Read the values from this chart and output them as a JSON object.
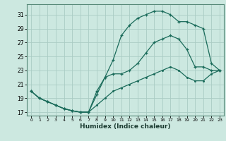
{
  "xlabel": "Humidex (Indice chaleur)",
  "xlim": [
    -0.5,
    23.5
  ],
  "ylim": [
    16.5,
    32.5
  ],
  "yticks": [
    17,
    19,
    21,
    23,
    25,
    27,
    29,
    31
  ],
  "xticks": [
    0,
    1,
    2,
    3,
    4,
    5,
    6,
    7,
    8,
    9,
    10,
    11,
    12,
    13,
    14,
    15,
    16,
    17,
    18,
    19,
    20,
    21,
    22,
    23
  ],
  "bg_color": "#cce8e0",
  "grid_color": "#aaccC4",
  "line_color": "#1a6b5a",
  "line1_x": [
    0,
    1,
    2,
    3,
    4,
    5,
    6,
    7,
    8,
    9,
    10,
    11,
    12,
    13,
    14,
    15,
    16,
    17,
    18,
    19,
    20,
    21,
    22,
    23
  ],
  "line1_y": [
    20.0,
    19.0,
    18.5,
    18.0,
    17.5,
    17.2,
    17.0,
    17.0,
    19.5,
    22.0,
    24.5,
    28.0,
    29.5,
    30.5,
    31.0,
    31.5,
    31.5,
    31.0,
    30.0,
    30.0,
    29.5,
    29.0,
    24.0,
    23.0
  ],
  "line2_x": [
    0,
    1,
    2,
    3,
    4,
    5,
    6,
    7,
    8,
    9,
    10,
    11,
    12,
    13,
    14,
    15,
    16,
    17,
    18,
    19,
    20,
    21,
    22,
    23
  ],
  "line2_y": [
    20.0,
    19.0,
    18.5,
    18.0,
    17.5,
    17.2,
    17.0,
    17.0,
    20.0,
    22.0,
    22.5,
    22.5,
    23.0,
    24.0,
    25.5,
    27.0,
    27.5,
    28.0,
    27.5,
    26.0,
    23.5,
    23.5,
    23.0,
    23.0
  ],
  "line3_x": [
    0,
    1,
    2,
    3,
    4,
    5,
    6,
    7,
    8,
    9,
    10,
    11,
    12,
    13,
    14,
    15,
    16,
    17,
    18,
    19,
    20,
    21,
    22,
    23
  ],
  "line3_y": [
    20.0,
    19.0,
    18.5,
    18.0,
    17.5,
    17.2,
    17.0,
    17.0,
    18.0,
    19.0,
    20.0,
    20.5,
    21.0,
    21.5,
    22.0,
    22.5,
    23.0,
    23.5,
    23.0,
    22.0,
    21.5,
    21.5,
    22.5,
    23.0
  ]
}
